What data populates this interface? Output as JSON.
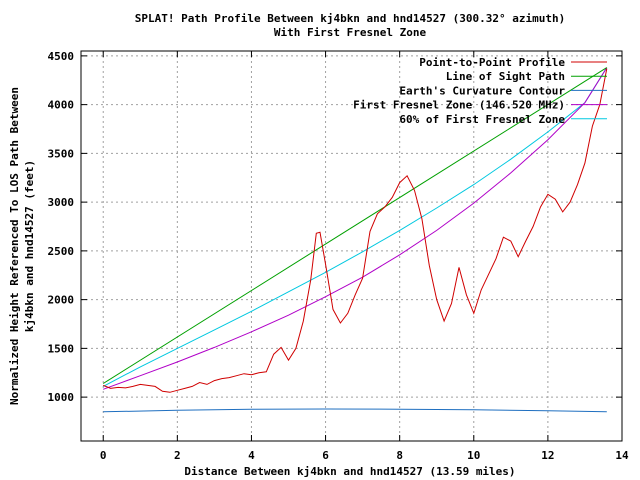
{
  "chart_data": {
    "type": "line",
    "title": "SPLAT! Path Profile Between kj4bkn and hnd14527 (300.32° azimuth)",
    "subtitle": "With First Fresnel Zone",
    "xlabel": "Distance Between kj4bkn and hnd14527 (13.59 miles)",
    "ylabel_line1": "Normalized Height Referenced To LOS Path Between",
    "ylabel_line2": "kj4bkn and hnd14527 (feet)",
    "xlim": [
      -0.6,
      14
    ],
    "ylim": [
      550,
      4550
    ],
    "xticks": [
      0,
      2,
      4,
      6,
      8,
      10,
      12,
      14
    ],
    "yticks": [
      1000,
      1500,
      2000,
      2500,
      3000,
      3500,
      4000,
      4500
    ],
    "grid": true,
    "legend_position": "top-right",
    "series": [
      {
        "name": "Point-to-Point Profile",
        "color": "#d00000",
        "points": [
          [
            0,
            1120
          ],
          [
            0.2,
            1090
          ],
          [
            0.4,
            1100
          ],
          [
            0.6,
            1095
          ],
          [
            0.8,
            1110
          ],
          [
            1.0,
            1130
          ],
          [
            1.2,
            1120
          ],
          [
            1.4,
            1110
          ],
          [
            1.6,
            1060
          ],
          [
            1.8,
            1050
          ],
          [
            2.0,
            1070
          ],
          [
            2.2,
            1090
          ],
          [
            2.4,
            1110
          ],
          [
            2.6,
            1150
          ],
          [
            2.8,
            1130
          ],
          [
            3.0,
            1170
          ],
          [
            3.2,
            1190
          ],
          [
            3.4,
            1200
          ],
          [
            3.6,
            1220
          ],
          [
            3.8,
            1240
          ],
          [
            4.0,
            1230
          ],
          [
            4.2,
            1250
          ],
          [
            4.4,
            1260
          ],
          [
            4.6,
            1440
          ],
          [
            4.8,
            1510
          ],
          [
            5.0,
            1380
          ],
          [
            5.2,
            1500
          ],
          [
            5.4,
            1780
          ],
          [
            5.6,
            2200
          ],
          [
            5.75,
            2680
          ],
          [
            5.85,
            2690
          ],
          [
            6.0,
            2360
          ],
          [
            6.2,
            1900
          ],
          [
            6.4,
            1760
          ],
          [
            6.6,
            1860
          ],
          [
            6.8,
            2050
          ],
          [
            7.0,
            2220
          ],
          [
            7.2,
            2700
          ],
          [
            7.4,
            2880
          ],
          [
            7.6,
            2950
          ],
          [
            7.8,
            3050
          ],
          [
            8.0,
            3200
          ],
          [
            8.2,
            3270
          ],
          [
            8.4,
            3120
          ],
          [
            8.6,
            2830
          ],
          [
            8.8,
            2350
          ],
          [
            9.0,
            2000
          ],
          [
            9.2,
            1780
          ],
          [
            9.4,
            1960
          ],
          [
            9.6,
            2330
          ],
          [
            9.8,
            2050
          ],
          [
            10.0,
            1860
          ],
          [
            10.2,
            2100
          ],
          [
            10.4,
            2260
          ],
          [
            10.6,
            2420
          ],
          [
            10.8,
            2640
          ],
          [
            11.0,
            2600
          ],
          [
            11.2,
            2440
          ],
          [
            11.4,
            2600
          ],
          [
            11.6,
            2750
          ],
          [
            11.8,
            2950
          ],
          [
            12.0,
            3080
          ],
          [
            12.2,
            3030
          ],
          [
            12.4,
            2900
          ],
          [
            12.6,
            3000
          ],
          [
            12.8,
            3180
          ],
          [
            13.0,
            3400
          ],
          [
            13.2,
            3780
          ],
          [
            13.4,
            4000
          ],
          [
            13.59,
            4370
          ]
        ]
      },
      {
        "name": "Line of Sight Path",
        "color": "#00a000",
        "points": [
          [
            0,
            1140
          ],
          [
            13.59,
            4380
          ]
        ]
      },
      {
        "name": "Earth's Curvature Contour",
        "color": "#1f6fc0",
        "points": [
          [
            0,
            850
          ],
          [
            2,
            865
          ],
          [
            4,
            875
          ],
          [
            6,
            878
          ],
          [
            8,
            876
          ],
          [
            10,
            870
          ],
          [
            12,
            860
          ],
          [
            13.59,
            850
          ]
        ]
      },
      {
        "name": "First Fresnel Zone (146.520 MHz)",
        "color": "#b000c8",
        "points": [
          [
            0,
            1080
          ],
          [
            1,
            1220
          ],
          [
            2,
            1360
          ],
          [
            3,
            1510
          ],
          [
            4,
            1670
          ],
          [
            5,
            1840
          ],
          [
            6,
            2030
          ],
          [
            7,
            2230
          ],
          [
            8,
            2460
          ],
          [
            9,
            2710
          ],
          [
            10,
            2990
          ],
          [
            11,
            3300
          ],
          [
            12,
            3640
          ],
          [
            13,
            4020
          ],
          [
            13.59,
            4380
          ]
        ]
      },
      {
        "name": "60% of First Fresnel Zone",
        "color": "#00c8e0",
        "points": [
          [
            0,
            1110
          ],
          [
            1,
            1310
          ],
          [
            2,
            1500
          ],
          [
            3,
            1690
          ],
          [
            4,
            1880
          ],
          [
            5,
            2080
          ],
          [
            6,
            2280
          ],
          [
            7,
            2490
          ],
          [
            8,
            2710
          ],
          [
            9,
            2940
          ],
          [
            10,
            3180
          ],
          [
            11,
            3440
          ],
          [
            12,
            3720
          ],
          [
            13,
            4020
          ],
          [
            13.59,
            4380
          ]
        ]
      }
    ]
  }
}
